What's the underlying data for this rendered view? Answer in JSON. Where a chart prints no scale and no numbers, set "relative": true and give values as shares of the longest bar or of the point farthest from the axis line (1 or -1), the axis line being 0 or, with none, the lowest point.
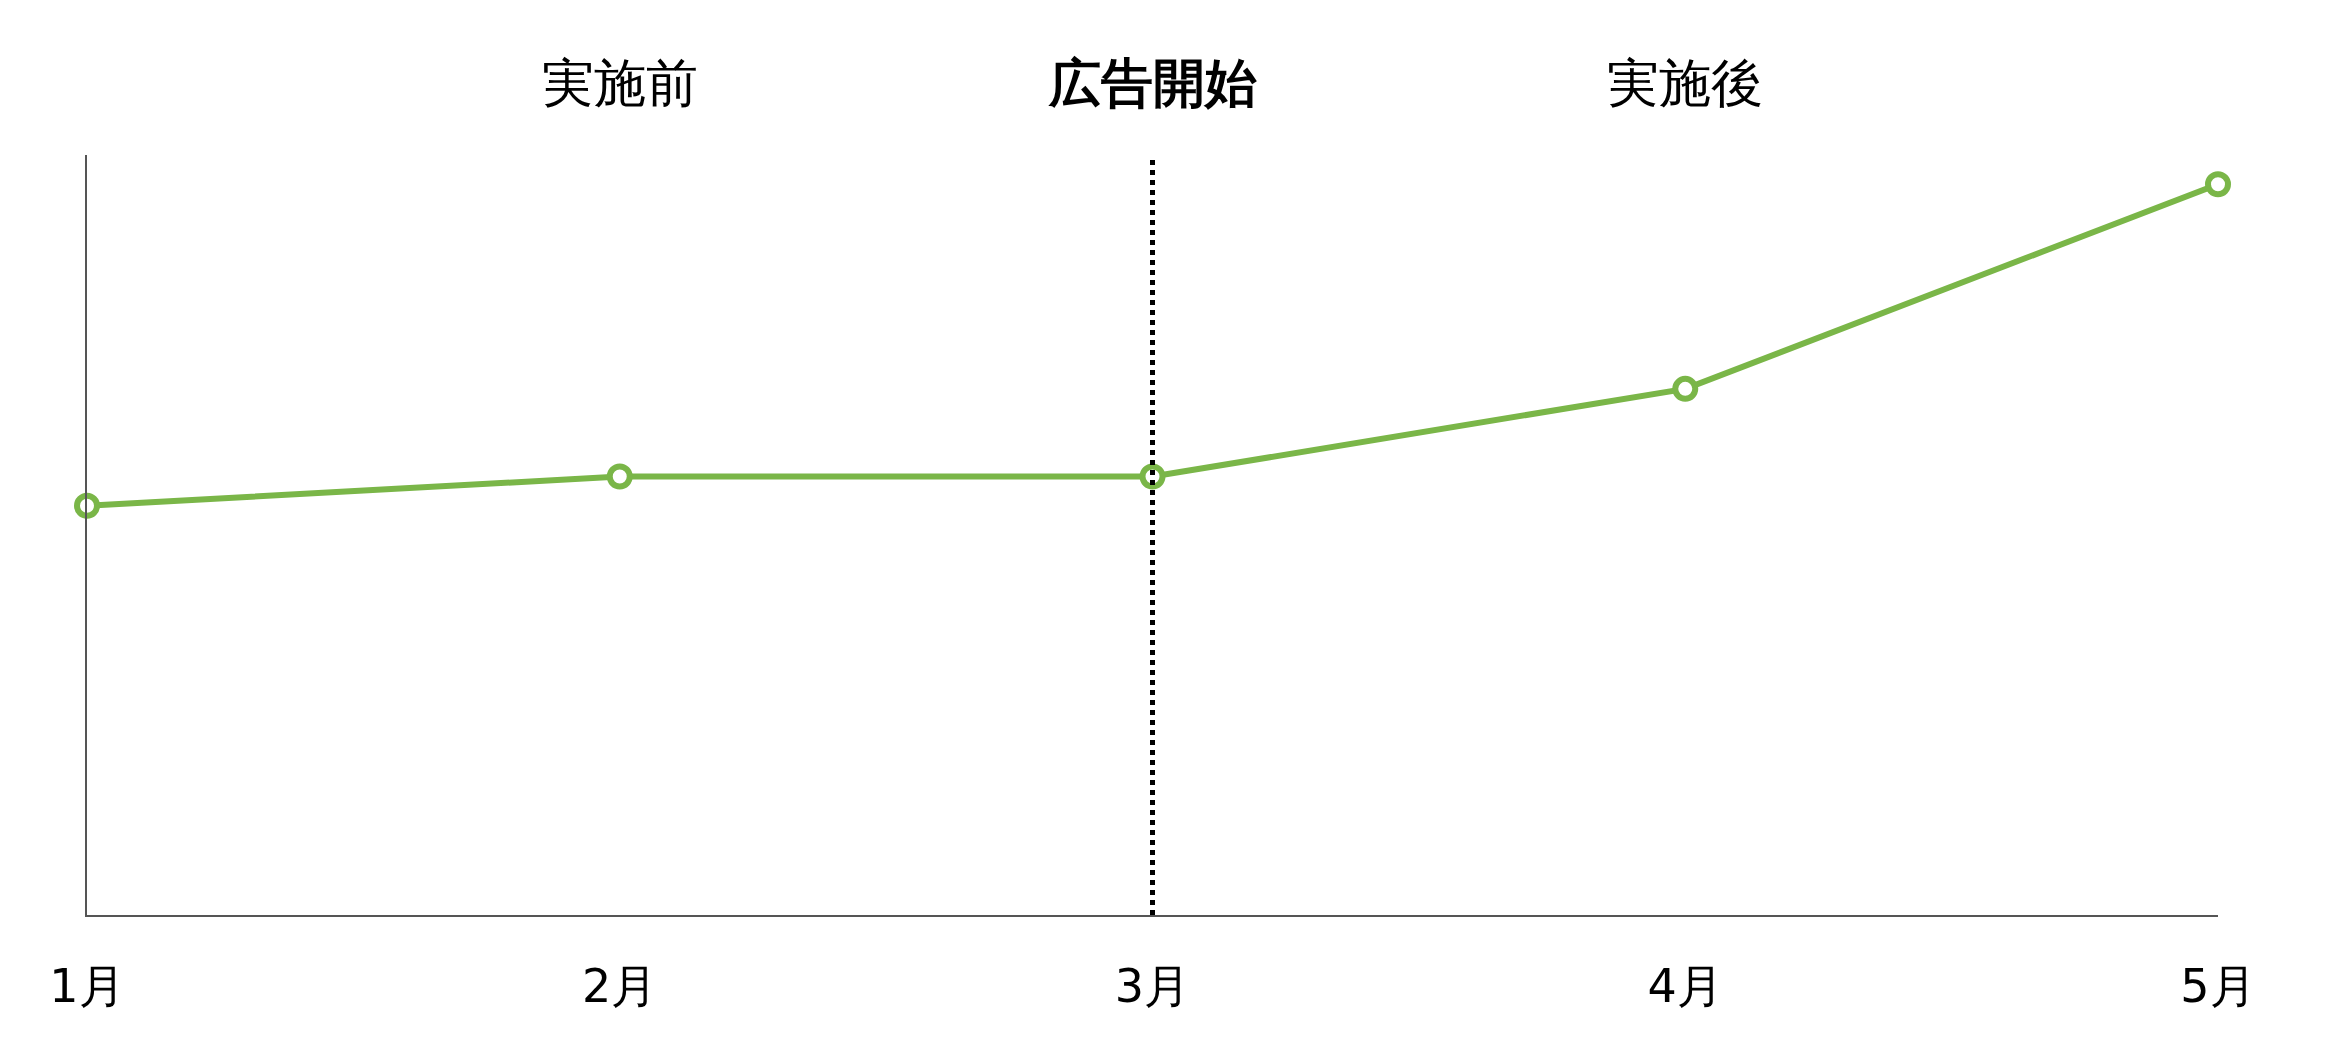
{
  "chart_data": {
    "type": "line",
    "relative": true,
    "categories": [
      "1月",
      "2月",
      "3月",
      "4月",
      "5月"
    ],
    "series": [
      {
        "color": "#7ab648",
        "values": [
          0.56,
          0.6,
          0.6,
          0.72,
          1
        ]
      }
    ],
    "marker": "circle",
    "line_style": "solid",
    "legend": false,
    "ref_lines": [
      {
        "axis": "x",
        "value": "3月",
        "label": "広告開始",
        "color": "#000000",
        "line_style": "dotted"
      }
    ],
    "annotations": [
      "実施前",
      "実施後"
    ]
  }
}
